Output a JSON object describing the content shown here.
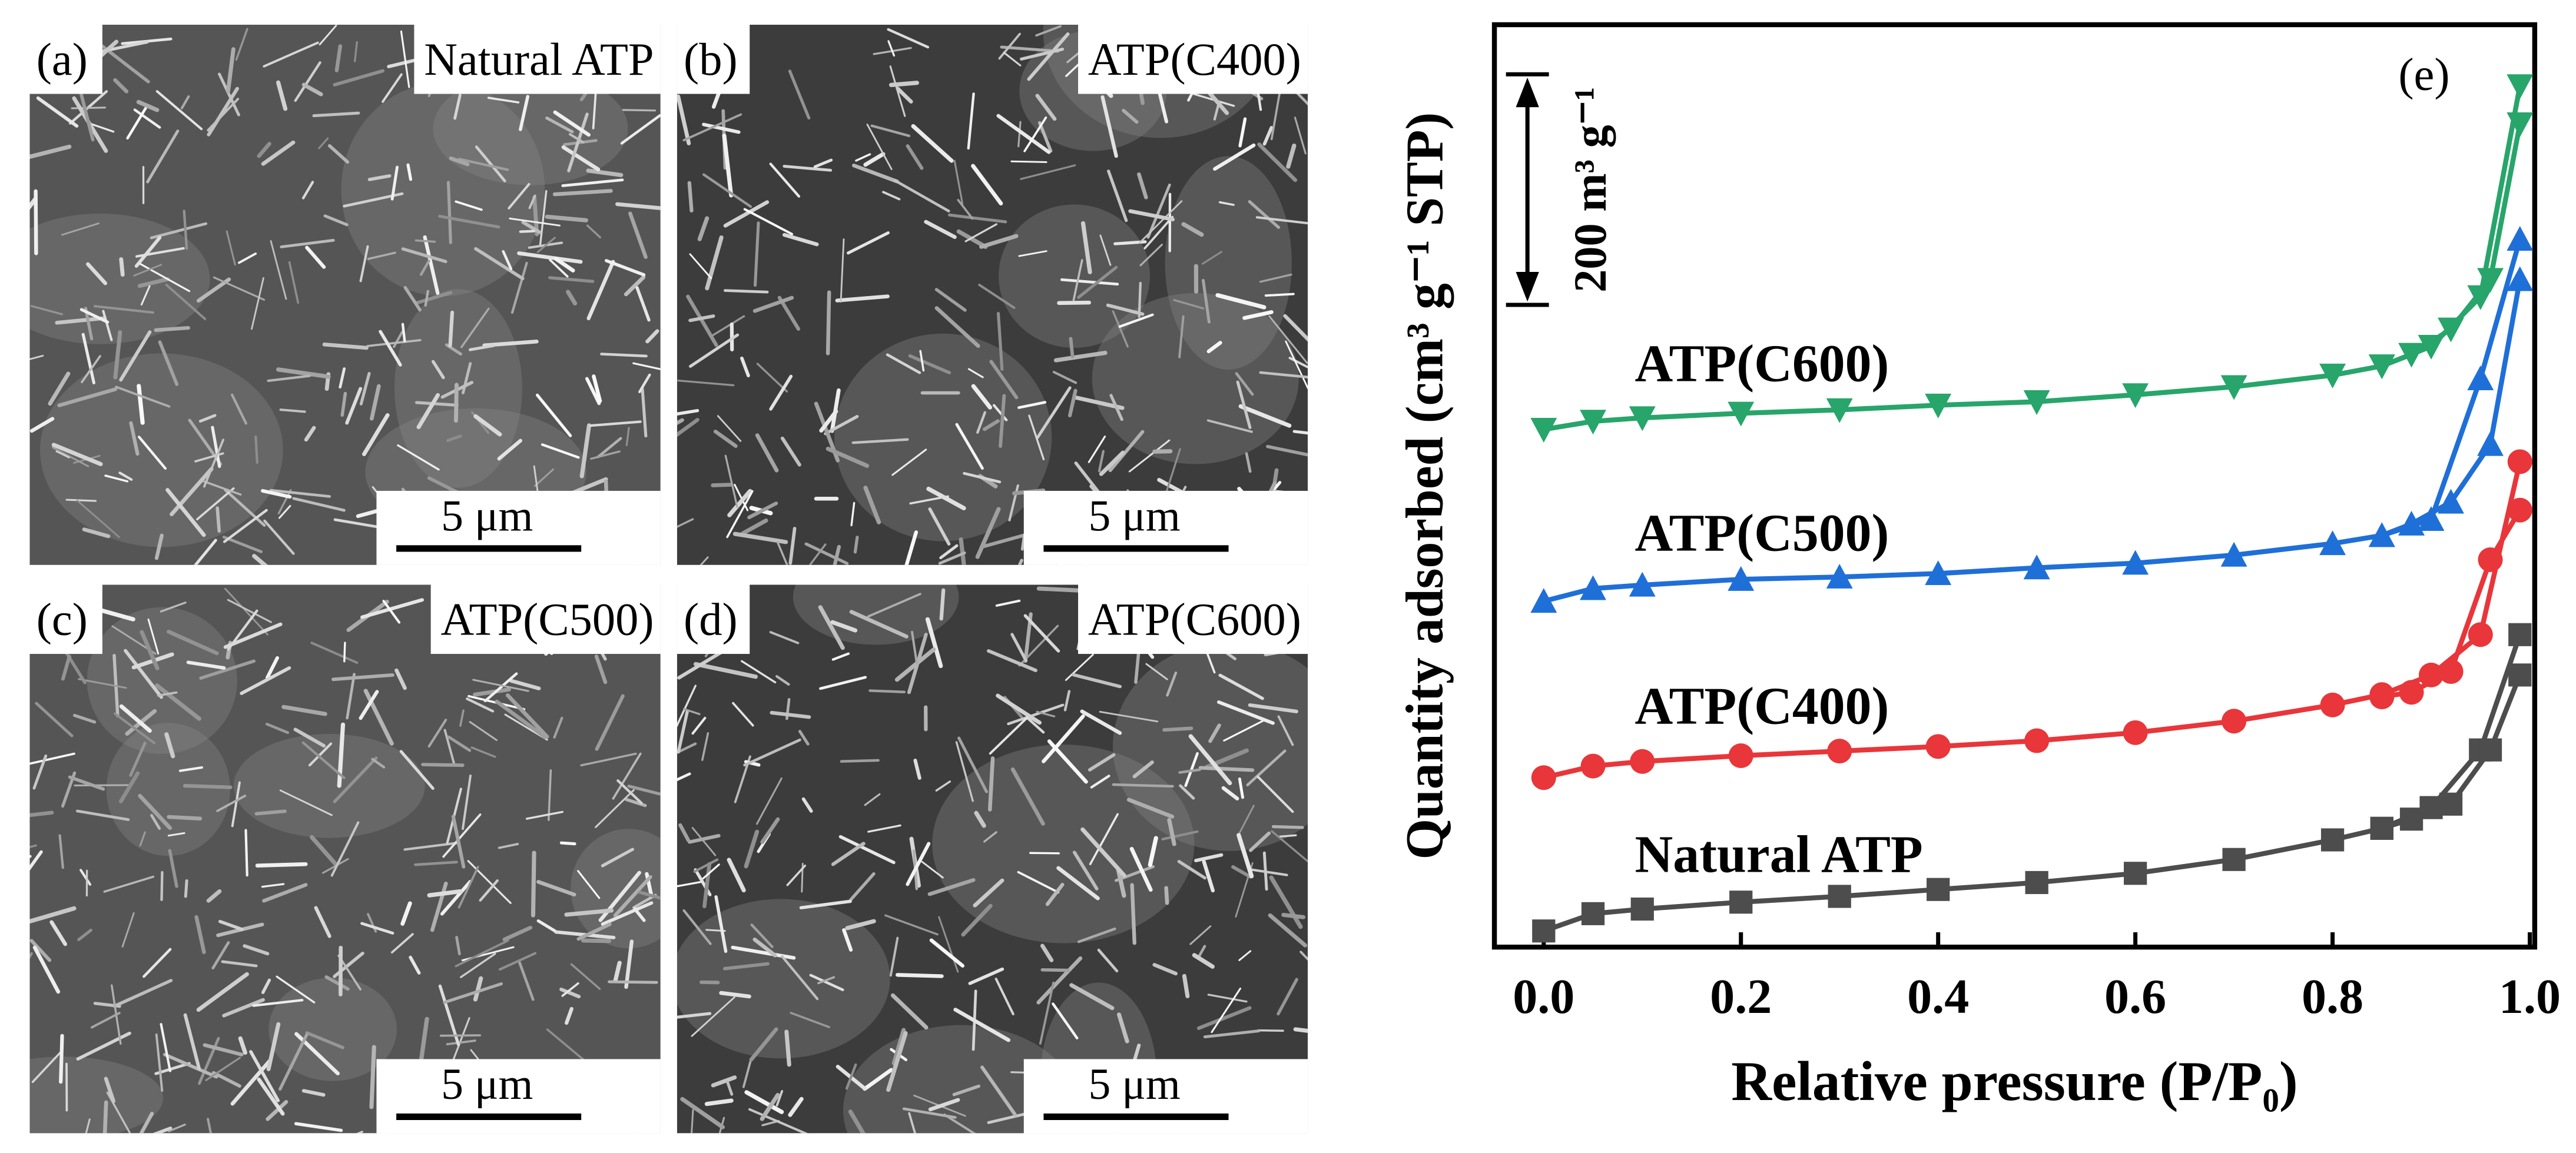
{
  "sem_panels": [
    {
      "tag": "(a)",
      "label": "Natural ATP",
      "scale_bar": "5 μm"
    },
    {
      "tag": "(b)",
      "label": "ATP(C400)",
      "scale_bar": "5 μm"
    },
    {
      "tag": "(c)",
      "label": "ATP(C500)",
      "scale_bar": "5 μm"
    },
    {
      "tag": "(d)",
      "label": "ATP(C600)",
      "scale_bar": "5 μm"
    }
  ],
  "chart_data": {
    "type": "line",
    "panel_tag": "(e)",
    "xlabel": "Relative pressure (P/P₀)",
    "ylabel": "Quantity adsorbed (cm³ g⁻¹ STP)",
    "xlim": [
      -0.05,
      1.005
    ],
    "ylim": [
      0,
      800
    ],
    "xticks": [
      {
        "value": 0,
        "label": "0.0"
      },
      0.2,
      0.4,
      0.6,
      0.8,
      {
        "value": 1,
        "label": "1.0"
      }
    ],
    "scale_bar": {
      "value": 200,
      "label": "200 m³ g⁻¹",
      "top": 757
    },
    "series": [
      {
        "name": "Natural ATP",
        "color": "#4d4d4d",
        "marker": "square",
        "x": [
          0,
          0.05,
          0.1,
          0.2,
          0.3,
          0.4,
          0.5,
          0.6,
          0.7,
          0.8,
          0.85,
          0.9,
          0.95,
          0.99
        ],
        "values": [
          14,
          29,
          33,
          39,
          44,
          50,
          56,
          64,
          76,
          93,
          103,
          121,
          171,
          271
        ],
        "desorption": {
          "x": [
            0.99,
            0.96,
            0.92,
            0.88,
            0.85
          ],
          "values": [
            236,
            171,
            124,
            111,
            103
          ]
        }
      },
      {
        "name": "ATP(C400)",
        "color": "#e8363a",
        "marker": "circle",
        "x": [
          0,
          0.05,
          0.1,
          0.2,
          0.3,
          0.4,
          0.5,
          0.6,
          0.7,
          0.8,
          0.85,
          0.9,
          0.95,
          0.99
        ],
        "values": [
          147,
          157,
          161,
          166,
          170,
          174,
          179,
          186,
          196,
          210,
          219,
          236,
          271,
          421
        ],
        "desorption": {
          "x": [
            0.99,
            0.96,
            0.92,
            0.88,
            0.85
          ],
          "values": [
            379,
            336,
            239,
            221,
            217
          ]
        }
      },
      {
        "name": "ATP(C500)",
        "color": "#1f6fd8",
        "marker": "triangle-up",
        "x": [
          0,
          0.05,
          0.1,
          0.2,
          0.3,
          0.4,
          0.5,
          0.6,
          0.7,
          0.8,
          0.85,
          0.9,
          0.95,
          0.99
        ],
        "values": [
          300,
          311,
          314,
          319,
          321,
          324,
          329,
          333,
          340,
          350,
          357,
          371,
          493,
          614
        ],
        "desorption": {
          "x": [
            0.99,
            0.96,
            0.92,
            0.88,
            0.85
          ],
          "values": [
            579,
            436,
            386,
            367,
            357
          ]
        }
      },
      {
        "name": "ATP(C600)",
        "color": "#27a56a",
        "marker": "triangle-down",
        "x": [
          0,
          0.05,
          0.1,
          0.2,
          0.3,
          0.4,
          0.5,
          0.6,
          0.7,
          0.8,
          0.85,
          0.9,
          0.95,
          0.99
        ],
        "values": [
          449,
          456,
          459,
          463,
          466,
          470,
          473,
          479,
          486,
          496,
          504,
          521,
          564,
          747
        ],
        "desorption": {
          "x": [
            0.99,
            0.96,
            0.92,
            0.88,
            0.85
          ],
          "values": [
            714,
            579,
            536,
            514,
            504
          ]
        }
      }
    ]
  }
}
